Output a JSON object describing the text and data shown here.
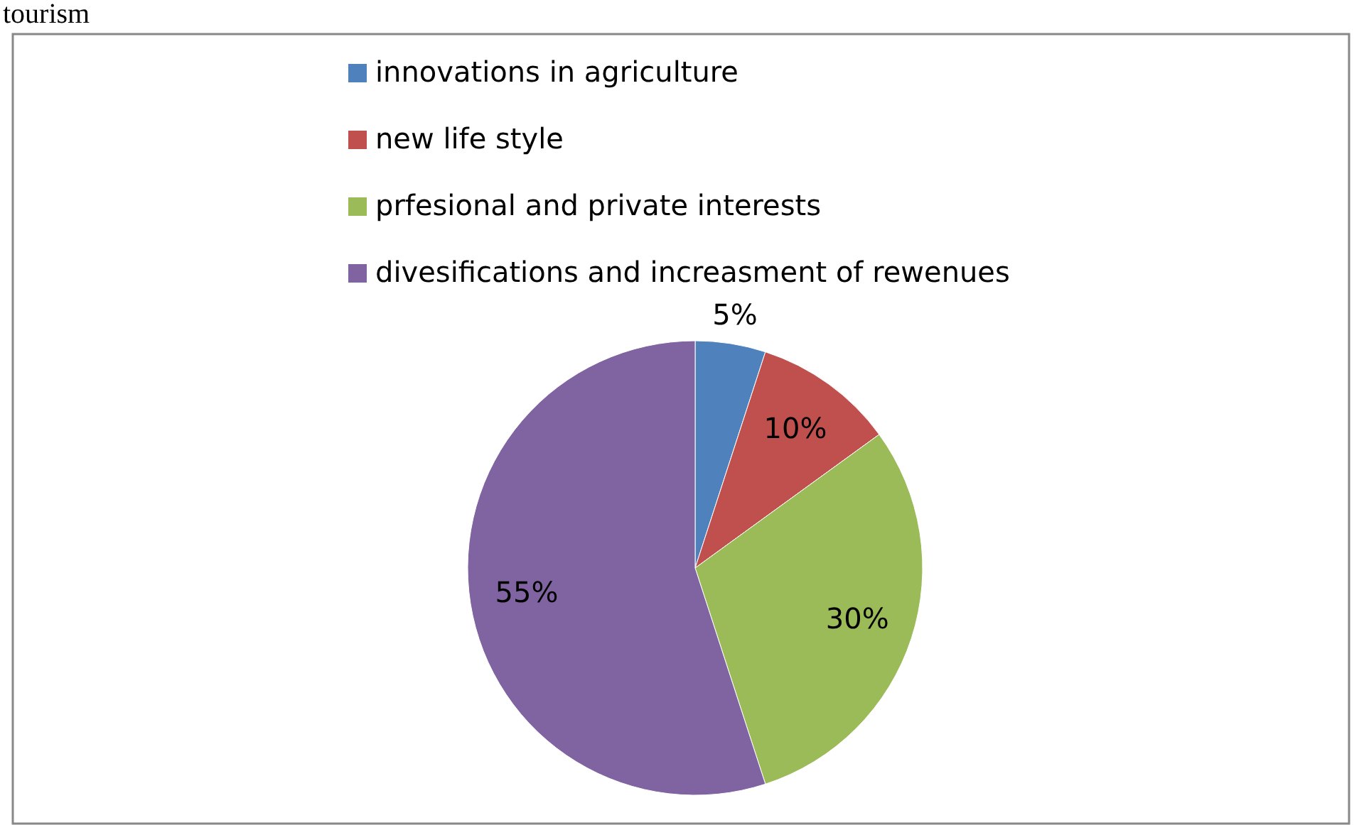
{
  "chart_data": {
    "type": "pie",
    "title": "tourism",
    "categories": [
      "innovations in agriculture",
      "new life style",
      "prfesional and private interests",
      "divesifications and increasment of rewenues"
    ],
    "values": [
      5,
      10,
      30,
      55
    ],
    "colors": [
      "#4f81bd",
      "#c0504d",
      "#9bbb59",
      "#8064a2"
    ],
    "value_labels": [
      "5%",
      "10%",
      "30%",
      "55%"
    ],
    "legend": "top"
  }
}
